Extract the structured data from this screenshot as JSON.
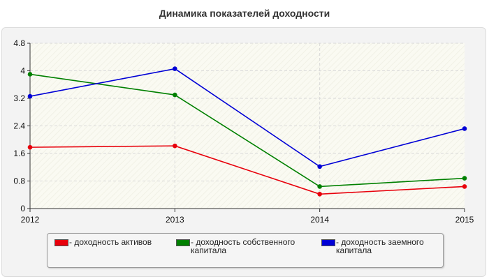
{
  "title": "Динамика показателей доходности",
  "chart_data": {
    "type": "line",
    "x": [
      "2012",
      "2013",
      "2014",
      "2015"
    ],
    "ylim": [
      0,
      4.8
    ],
    "yticks": [
      "0",
      "0.8",
      "1.6",
      "2.4",
      "3.2",
      "4",
      "4.8"
    ],
    "grid": true,
    "legend_position": "bottom",
    "series": [
      {
        "name": "- доходность активов",
        "color": "#e8000b",
        "values": [
          1.78,
          1.82,
          0.42,
          0.64
        ]
      },
      {
        "name": "- доходность собственного капитала",
        "color": "#008000",
        "values": [
          3.9,
          3.3,
          0.64,
          0.88
        ]
      },
      {
        "name": "- доходность заемного капитала",
        "color": "#0000d6",
        "values": [
          3.26,
          4.06,
          1.22,
          2.32
        ]
      }
    ]
  }
}
